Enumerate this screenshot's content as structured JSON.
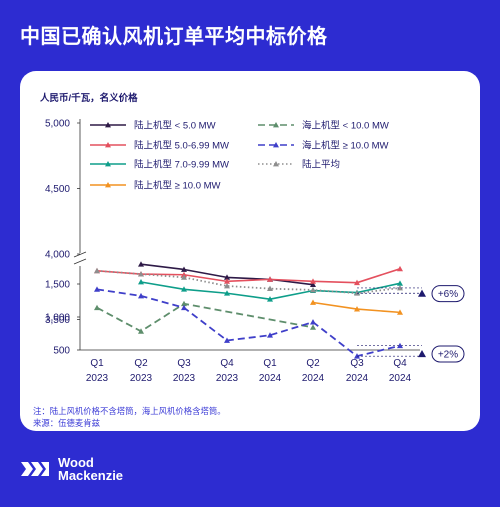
{
  "title": "中国已确认风机订单平均中标价格",
  "footnote": {
    "note": "注：陆上风机价格不含塔筒，海上风机价格含塔筒。",
    "source": "来源：伍德麦肯兹"
  },
  "logo": {
    "line1": "Wood",
    "line2": "Mackenzie"
  },
  "colors": {
    "background": "#2D2CD1",
    "card": "#FFFFFF",
    "accent": "#1E1A6E"
  },
  "chart_data": {
    "type": "line",
    "ylabel": "人民币/千瓦，名义价格",
    "categories": [
      "Q1 2023",
      "Q2 2023",
      "Q3 2023",
      "Q4 2023",
      "Q1 2024",
      "Q2 2024",
      "Q3 2024",
      "Q4 2024"
    ],
    "x_tick_labels": [
      [
        "Q1",
        "2023"
      ],
      [
        "Q2",
        "2023"
      ],
      [
        "Q3",
        "2023"
      ],
      [
        "Q4",
        "2023"
      ],
      [
        "Q1",
        "2024"
      ],
      [
        "Q2",
        "2024"
      ],
      [
        "Q3",
        "2024"
      ],
      [
        "Q4",
        "2024"
      ]
    ],
    "y_ticks_upper": [
      3500,
      4000,
      4500,
      5000
    ],
    "y_ticks_lower": [
      500,
      1000,
      1500
    ],
    "y_tick_labels": [
      "500",
      "1,000",
      "1,500",
      "3,500",
      "4,000",
      "4,500",
      "5,000"
    ],
    "axis_break": true,
    "grid": false,
    "legend_position": "top",
    "series": [
      {
        "name": "陆上机型 < 5.0 MW",
        "color": "#2E1A47",
        "dash": "solid",
        "marker": "triangle",
        "values": [
          null,
          1800,
          1720,
          1600,
          1570,
          1490,
          null,
          null
        ]
      },
      {
        "name": "陆上机型 5.0-6.99 MW",
        "color": "#E4505E",
        "dash": "solid",
        "marker": "triangle",
        "values": [
          1700,
          1650,
          1640,
          1540,
          1570,
          1540,
          1520,
          1730
        ]
      },
      {
        "name": "陆上机型 7.0-9.99 MW",
        "color": "#0E9E8A",
        "dash": "solid",
        "marker": "triangle",
        "values": [
          null,
          1530,
          1420,
          1360,
          1270,
          1400,
          1370,
          1510
        ]
      },
      {
        "name": "陆上机型 ≥ 10.0 MW",
        "color": "#F29221",
        "dash": "solid",
        "marker": "triangle",
        "values": [
          null,
          null,
          null,
          null,
          null,
          1220,
          1120,
          1070
        ]
      },
      {
        "name": "海上机型 < 10.0 MW",
        "color": "#5E8E6C",
        "dash": "dash",
        "marker": "triangle",
        "values": [
          3590,
          3410,
          3620,
          null,
          null,
          3440,
          null,
          null
        ]
      },
      {
        "name": "海上机型 ≥ 10.0 MW",
        "color": "#3F3FC9",
        "dash": "dash",
        "marker": "triangle",
        "values": [
          3730,
          3680,
          3590,
          3340,
          3380,
          3480,
          3220,
          3300
        ]
      },
      {
        "name": "陆上平均",
        "color": "#8E8E8E",
        "dash": "dot",
        "marker": "triangle",
        "values": [
          1700,
          1650,
          1600,
          1470,
          1430,
          1410,
          1360,
          1440
        ]
      }
    ],
    "annotations": [
      {
        "text": "+2%",
        "target": "海上机型 ≥ 10.0 MW"
      },
      {
        "text": "+6%",
        "target": "陆上平均"
      }
    ]
  }
}
